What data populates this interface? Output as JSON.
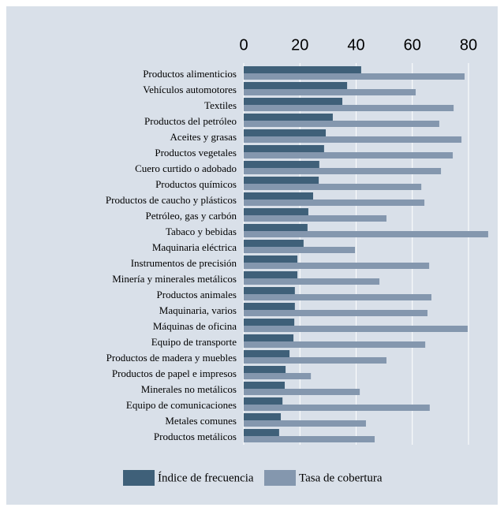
{
  "chart_data": {
    "type": "bar",
    "orientation": "horizontal",
    "categories": [
      "Productos alimenticios",
      "Vehículos automotores",
      "Textiles",
      "Productos del petróleo",
      "Aceites y grasas",
      "Productos vegetales",
      "Cuero curtido o adobado",
      "Productos químicos",
      "Productos de caucho y plásticos",
      "Petróleo, gas y carbón",
      "Tabaco y bebidas",
      "Maquinaria eléctrica",
      "Instrumentos de precisión",
      "Minería y minerales metálicos",
      "Productos animales",
      "Maquinaria, varios",
      "Máquinas de oficina",
      "Equipo de transporte",
      "Productos de madera y muebles",
      "Productos de papel e impresos",
      "Minerales no metálicos",
      "Equipo de comunicaciones",
      "Metales comunes",
      "Productos metálicos"
    ],
    "series": [
      {
        "name": "Índice de frecuencia",
        "color": "#3f6079",
        "values": [
          41.8,
          36.8,
          35.1,
          31.7,
          29.2,
          28.6,
          26.9,
          26.7,
          24.7,
          23.0,
          22.7,
          21.3,
          19.1,
          19.1,
          18.2,
          18.2,
          18.0,
          17.7,
          16.3,
          14.9,
          14.6,
          13.8,
          13.2,
          12.6
        ]
      },
      {
        "name": "Tasa de cobertura",
        "color": "#8497ae",
        "values": [
          78.6,
          61.2,
          74.7,
          69.6,
          77.5,
          74.4,
          70.2,
          63.2,
          64.3,
          50.8,
          87.0,
          39.6,
          66.0,
          48.3,
          66.8,
          65.4,
          79.7,
          64.6,
          50.8,
          23.9,
          41.3,
          66.2,
          43.5,
          46.6
        ]
      }
    ],
    "xlim": [
      0,
      88
    ],
    "xticks": [
      0,
      20,
      40,
      60,
      80
    ],
    "grid": true
  }
}
